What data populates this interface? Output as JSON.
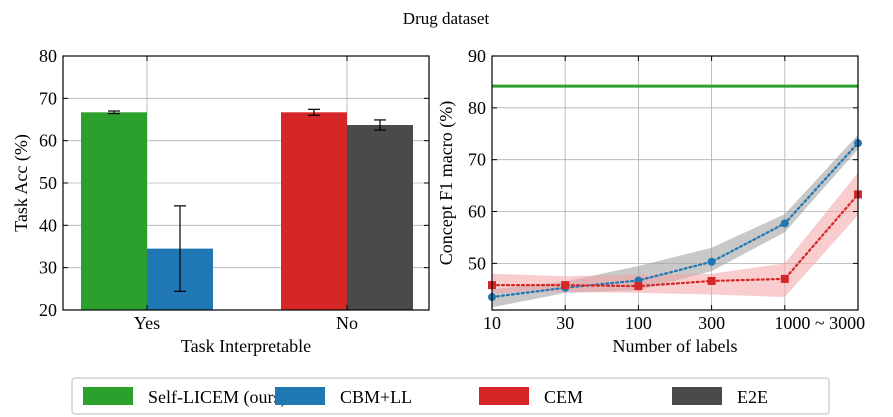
{
  "title": "Drug dataset",
  "colors": {
    "self_licem": "#2ca02c",
    "cbm_ll": "#1f77b4",
    "cem": "#d62728",
    "e2e": "#4a4a4a"
  },
  "legend": {
    "placement": "bottom",
    "entries": [
      {
        "name": "Self-LICEM (ours)",
        "color": "#2ca02c"
      },
      {
        "name": "CBM+LL",
        "color": "#1f77b4"
      },
      {
        "name": "CEM",
        "color": "#d62728"
      },
      {
        "name": "E2E",
        "color": "#4a4a4a"
      }
    ]
  },
  "chart_data": [
    {
      "type": "bar",
      "xlabel": "Task Interpretable",
      "ylabel": "Task Acc (%)",
      "ylim": [
        20,
        80
      ],
      "yticks": [
        20,
        30,
        40,
        50,
        60,
        70,
        80
      ],
      "grid": true,
      "categories": [
        "Yes",
        "No"
      ],
      "bars": [
        {
          "name": "Self-LICEM (ours)",
          "category": "Yes",
          "value": 66.7,
          "err": 0.3,
          "color": "#2ca02c"
        },
        {
          "name": "CBM+LL",
          "category": "Yes",
          "value": 34.5,
          "err": 10.1,
          "color": "#1f77b4"
        },
        {
          "name": "CEM",
          "category": "No",
          "value": 66.7,
          "err": 0.7,
          "color": "#d62728"
        },
        {
          "name": "E2E",
          "category": "No",
          "value": 63.7,
          "err": 1.2,
          "color": "#4a4a4a"
        }
      ]
    },
    {
      "type": "line",
      "xlabel": "Number of labels",
      "ylabel": "Concept F1 macro (%)",
      "ylim": [
        41,
        90
      ],
      "yticks": [
        50,
        60,
        70,
        80,
        90
      ],
      "grid": true,
      "categories": [
        "10",
        "30",
        "100",
        "300",
        "1000",
        "3000"
      ],
      "tick_labels": [
        "10",
        "30",
        "100",
        "300",
        "1000  ~ 3000"
      ],
      "series": [
        {
          "name": "Self-LICEM (ours)",
          "color": "#2ca02c",
          "style": "solid",
          "values": [
            84.2,
            84.2,
            84.2,
            84.2,
            84.2,
            84.2
          ]
        },
        {
          "name": "CBM+LL",
          "color": "#1f77b4",
          "style": "dotted",
          "marker": "circle",
          "values": [
            43.5,
            45.3,
            46.7,
            50.3,
            57.7,
            73.2
          ],
          "lower": [
            41.5,
            44.3,
            44.8,
            48.5,
            56.0,
            72.0
          ],
          "upper": [
            45.0,
            46.5,
            49.5,
            53.0,
            59.5,
            74.8
          ],
          "band_color": "#9a9a9a"
        },
        {
          "name": "CEM",
          "color": "#d62728",
          "style": "dotted",
          "marker": "square",
          "values": [
            45.8,
            45.8,
            45.6,
            46.6,
            47.0,
            63.3
          ],
          "lower": [
            44.3,
            44.5,
            44.3,
            44.0,
            43.5,
            59.3
          ],
          "upper": [
            48.0,
            47.5,
            47.8,
            48.0,
            50.0,
            67.5
          ],
          "band_color": "#f4a4a4"
        }
      ]
    }
  ]
}
